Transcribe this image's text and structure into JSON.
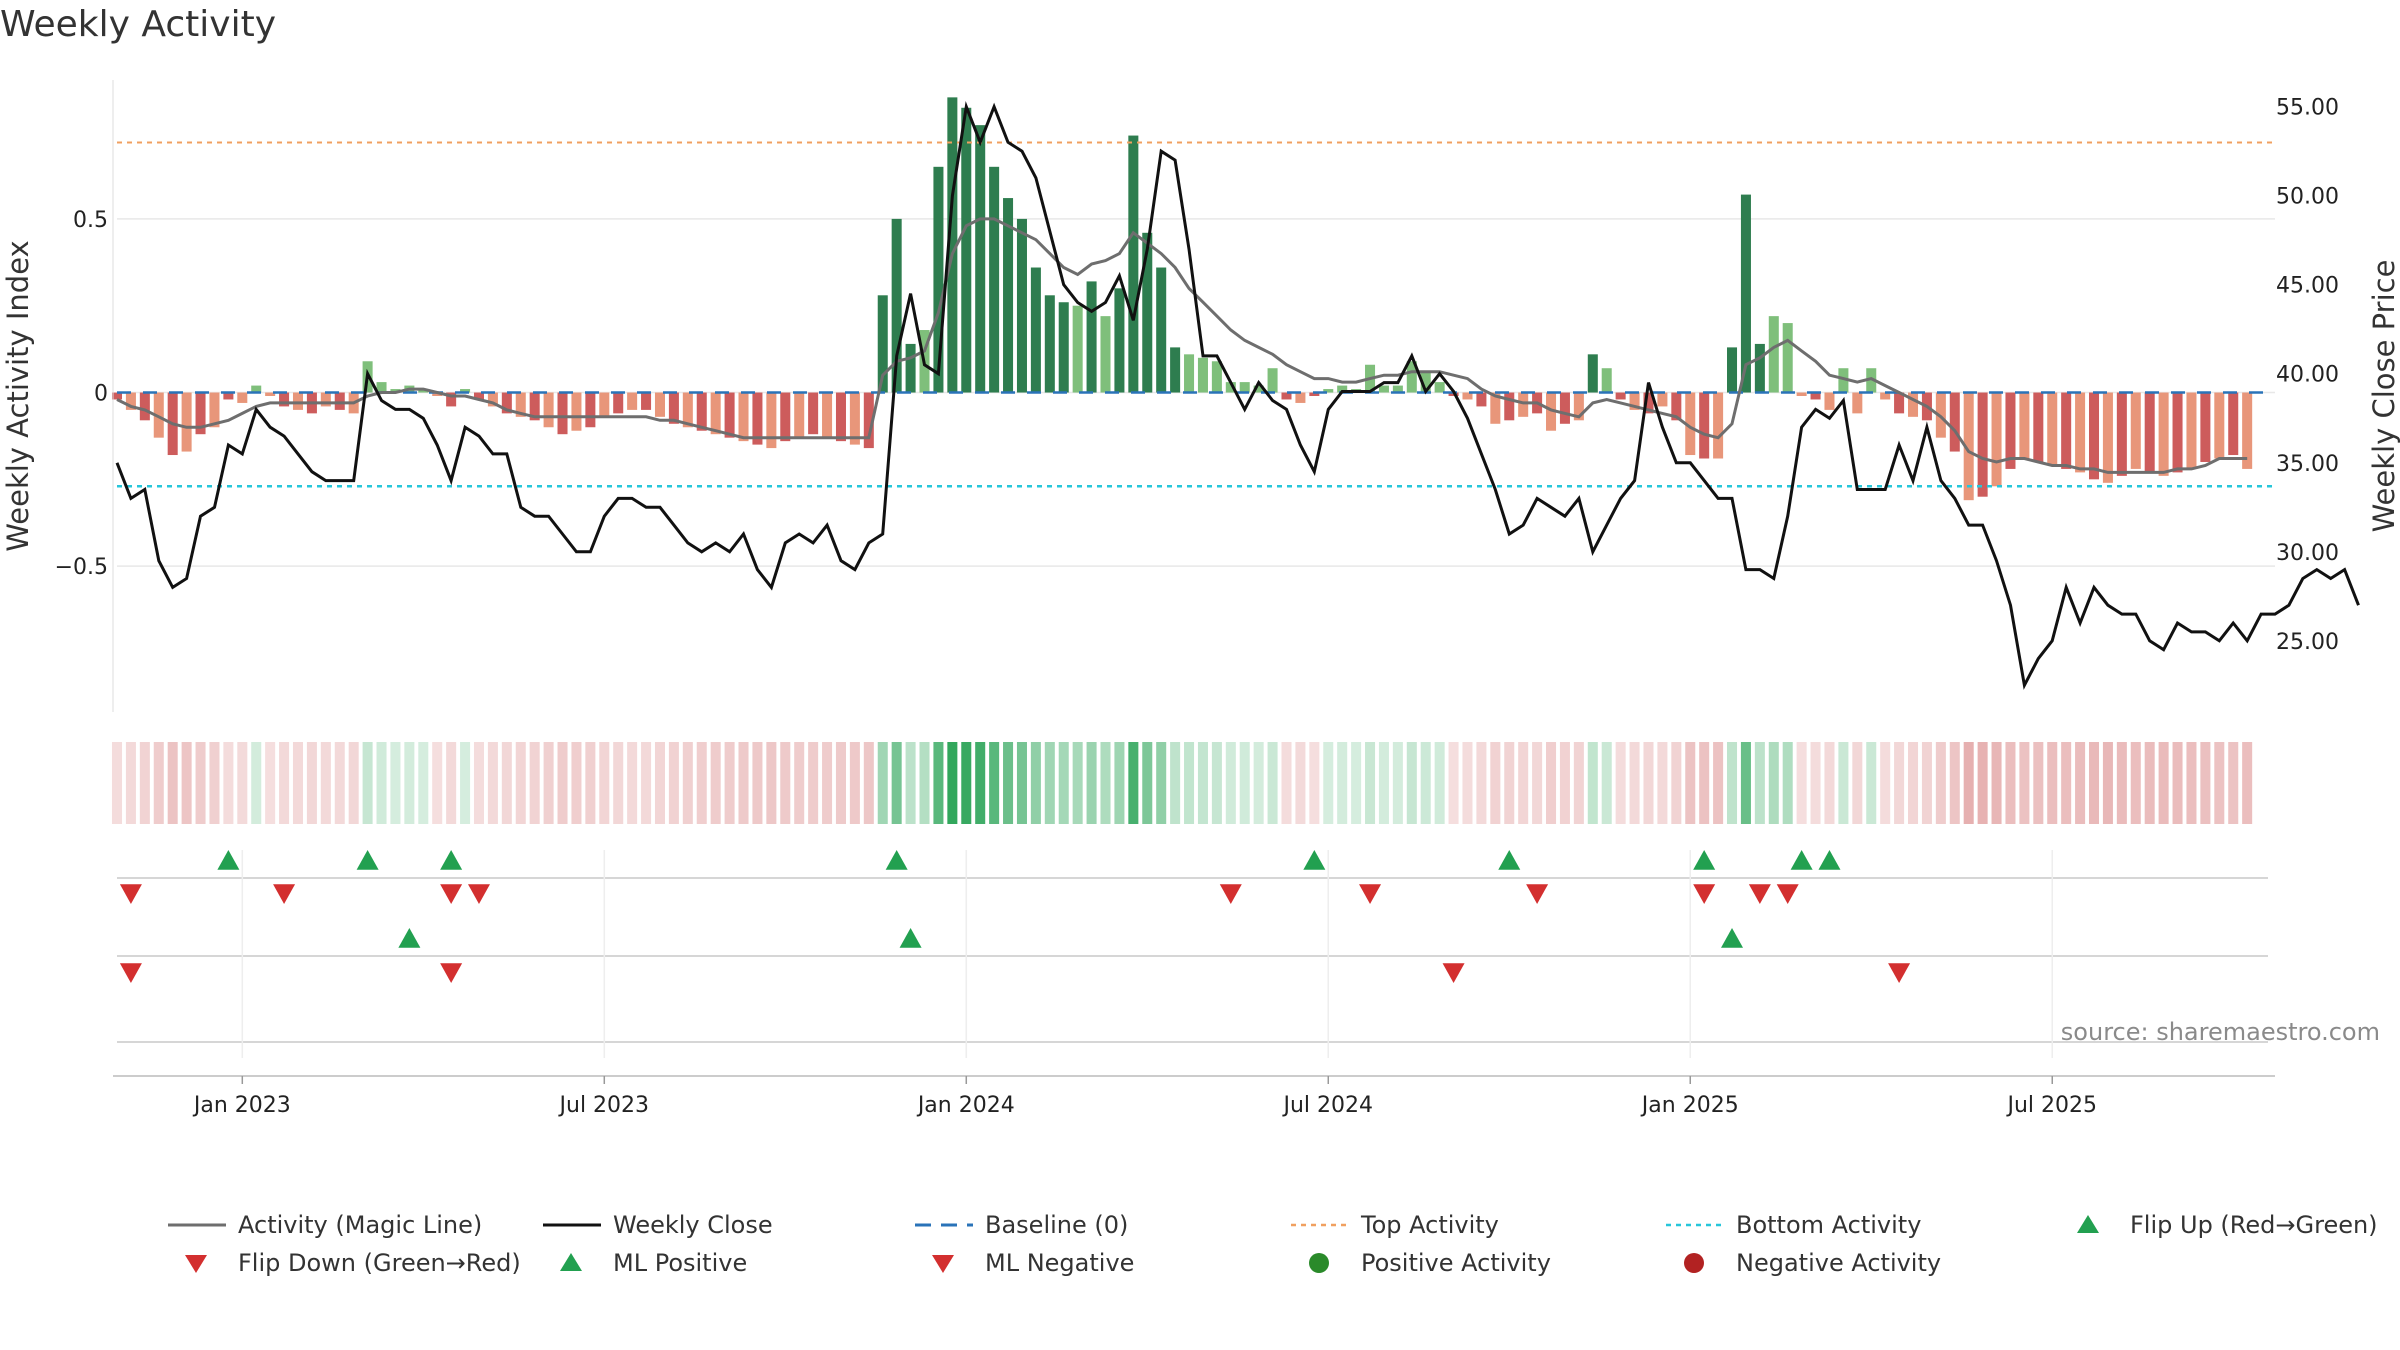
{
  "chart_data": {
    "type": "bar",
    "title": "Weekly Activity",
    "ylabel_left": "Weekly Activity Index",
    "ylabel_right": "Weekly Close Price",
    "source": "source: sharemaestro.com",
    "x_ticks": [
      "Jan 2023",
      "Jul 2023",
      "Jan 2024",
      "Jul 2024",
      "Jan 2025",
      "Jul 2025"
    ],
    "x_tick_weeks": [
      9,
      35,
      61,
      87,
      113,
      139
    ],
    "left_ticks": [
      {
        "v": 0.5,
        "label": "0.5"
      },
      {
        "v": 0,
        "label": "0"
      },
      {
        "v": -0.5,
        "label": "−0.5"
      }
    ],
    "right_ticks": [
      {
        "v": 55,
        "label": "55.00"
      },
      {
        "v": 50,
        "label": "50.00"
      },
      {
        "v": 45,
        "label": "45.00"
      },
      {
        "v": 40,
        "label": "40.00"
      },
      {
        "v": 35,
        "label": "35.00"
      },
      {
        "v": 30,
        "label": "30.00"
      },
      {
        "v": 25,
        "label": "25.00"
      }
    ],
    "ylim_left": [
      -0.92,
      0.9
    ],
    "ylim_right": [
      21,
      56.5
    ],
    "top_activity": 0.72,
    "bottom_activity": -0.27,
    "weeks": 156,
    "activity": [
      -0.02,
      -0.05,
      -0.08,
      -0.13,
      -0.18,
      -0.17,
      -0.12,
      -0.1,
      -0.02,
      -0.03,
      0.02,
      -0.01,
      -0.04,
      -0.05,
      -0.06,
      -0.04,
      -0.05,
      -0.06,
      0.09,
      0.03,
      0.01,
      0.02,
      0.01,
      -0.01,
      -0.04,
      0.01,
      -0.02,
      -0.04,
      -0.06,
      -0.07,
      -0.08,
      -0.1,
      -0.12,
      -0.11,
      -0.1,
      -0.07,
      -0.06,
      -0.05,
      -0.05,
      -0.07,
      -0.09,
      -0.1,
      -0.11,
      -0.12,
      -0.13,
      -0.14,
      -0.15,
      -0.16,
      -0.14,
      -0.13,
      -0.12,
      -0.13,
      -0.14,
      -0.15,
      -0.16,
      0.28,
      0.5,
      0.14,
      0.18,
      0.65,
      0.85,
      0.82,
      0.77,
      0.65,
      0.56,
      0.5,
      0.36,
      0.28,
      0.26,
      0.25,
      0.32,
      0.22,
      0.3,
      0.74,
      0.46,
      0.36,
      0.13,
      0.11,
      0.1,
      0.09,
      0.03,
      0.03,
      0.02,
      0.07,
      -0.02,
      -0.03,
      -0.01,
      0.01,
      0.02,
      0.01,
      0.08,
      0.02,
      0.02,
      0.09,
      0.06,
      0.03,
      -0.01,
      -0.02,
      -0.04,
      -0.09,
      -0.08,
      -0.07,
      -0.06,
      -0.11,
      -0.09,
      -0.08,
      0.11,
      0.07,
      -0.02,
      -0.05,
      -0.06,
      -0.04,
      -0.08,
      -0.18,
      -0.19,
      -0.19,
      0.13,
      0.57,
      0.14,
      0.22,
      0.2,
      -0.01,
      -0.02,
      -0.05,
      0.07,
      -0.06,
      0.07,
      -0.02,
      -0.06,
      -0.07,
      -0.08,
      -0.13,
      -0.17,
      -0.31,
      -0.3,
      -0.27,
      -0.22,
      -0.19,
      -0.2,
      -0.21,
      -0.22,
      -0.23,
      -0.25,
      -0.26,
      -0.24,
      -0.22,
      -0.23,
      -0.24,
      -0.23,
      -0.22,
      -0.2,
      -0.19,
      -0.18,
      -0.22
    ],
    "magic_line": [
      -0.02,
      -0.04,
      -0.05,
      -0.07,
      -0.09,
      -0.1,
      -0.1,
      -0.09,
      -0.08,
      -0.06,
      -0.04,
      -0.03,
      -0.03,
      -0.03,
      -0.03,
      -0.03,
      -0.03,
      -0.03,
      -0.01,
      0.0,
      0.0,
      0.01,
      0.01,
      0.0,
      -0.01,
      -0.01,
      -0.02,
      -0.03,
      -0.05,
      -0.06,
      -0.07,
      -0.07,
      -0.07,
      -0.07,
      -0.07,
      -0.07,
      -0.07,
      -0.07,
      -0.07,
      -0.08,
      -0.08,
      -0.09,
      -0.1,
      -0.11,
      -0.12,
      -0.13,
      -0.13,
      -0.13,
      -0.13,
      -0.13,
      -0.13,
      -0.13,
      -0.13,
      -0.13,
      -0.13,
      0.05,
      0.09,
      0.1,
      0.12,
      0.23,
      0.4,
      0.48,
      0.5,
      0.5,
      0.48,
      0.46,
      0.44,
      0.4,
      0.36,
      0.34,
      0.37,
      0.38,
      0.4,
      0.46,
      0.43,
      0.4,
      0.36,
      0.3,
      0.26,
      0.22,
      0.18,
      0.15,
      0.13,
      0.11,
      0.08,
      0.06,
      0.04,
      0.04,
      0.03,
      0.03,
      0.04,
      0.05,
      0.05,
      0.06,
      0.06,
      0.06,
      0.05,
      0.04,
      0.01,
      -0.01,
      -0.02,
      -0.03,
      -0.03,
      -0.05,
      -0.06,
      -0.07,
      -0.03,
      -0.02,
      -0.03,
      -0.04,
      -0.05,
      -0.06,
      -0.07,
      -0.1,
      -0.12,
      -0.13,
      -0.09,
      0.08,
      0.1,
      0.13,
      0.15,
      0.12,
      0.09,
      0.05,
      0.04,
      0.03,
      0.04,
      0.02,
      0.0,
      -0.02,
      -0.04,
      -0.07,
      -0.11,
      -0.17,
      -0.19,
      -0.2,
      -0.19,
      -0.19,
      -0.2,
      -0.21,
      -0.21,
      -0.22,
      -0.22,
      -0.23,
      -0.23,
      -0.23,
      -0.23,
      -0.23,
      -0.22,
      -0.22,
      -0.21,
      -0.19,
      -0.19,
      -0.19
    ],
    "weekly_close": [
      35,
      33,
      33.5,
      29.5,
      28,
      28.5,
      32,
      32.5,
      36,
      35.5,
      38,
      37,
      36.5,
      35.5,
      34.5,
      34,
      34,
      34,
      40,
      38.5,
      38,
      38,
      37.5,
      36,
      34,
      37,
      36.5,
      35.5,
      35.5,
      32.5,
      32,
      32,
      31,
      30,
      30,
      32,
      33,
      33,
      32.5,
      32.5,
      31.5,
      30.5,
      30,
      30.5,
      30,
      31,
      29,
      28,
      30.5,
      31,
      30.5,
      31.5,
      29.5,
      29,
      30.5,
      31,
      41,
      44.5,
      40.5,
      40,
      50,
      55,
      53,
      55,
      53,
      52.5,
      51,
      48,
      45,
      44,
      43.5,
      44,
      45.5,
      43,
      47,
      52.5,
      52,
      47,
      41,
      41,
      39.5,
      38,
      39.5,
      38.5,
      38,
      36,
      34.5,
      38,
      39,
      39,
      39,
      39.5,
      39.5,
      41,
      39,
      40,
      39,
      37.5,
      35.5,
      33.5,
      31,
      31.5,
      33,
      32.5,
      32,
      33,
      30,
      31.5,
      33,
      34,
      39.5,
      37,
      35,
      35,
      34,
      33,
      33,
      29,
      29,
      28.5,
      32,
      37,
      38,
      37.5,
      38.5,
      33.5,
      33.5,
      33.5,
      36,
      34,
      37,
      34,
      33,
      31.5,
      31.5,
      29.5,
      27,
      22.5,
      24,
      25,
      28,
      26,
      28,
      27,
      26.5,
      26.5,
      25,
      24.5,
      26,
      25.5,
      25.5,
      25,
      26,
      25,
      26.5,
      26.5,
      27,
      28.5,
      29,
      28.5,
      29,
      27
    ],
    "flip_up": [
      5,
      10,
      13,
      29,
      45,
      54,
      60,
      64,
      65
    ],
    "flip_down": [
      0,
      6,
      12,
      14,
      43,
      49,
      55,
      62,
      64,
      65
    ],
    "ml_positive": [
      11,
      29,
      59
    ],
    "ml_negative": [
      0,
      12,
      49,
      65
    ],
    "flip_up_x_weeks": [
      8,
      18,
      24,
      56,
      86,
      100,
      114,
      121,
      123
    ],
    "flip_down_x_weeks": [
      1,
      12,
      24,
      26,
      80,
      90,
      102,
      114,
      118,
      120
    ],
    "ml_positive_x_weeks": [
      21,
      57,
      116
    ],
    "ml_negative_x_weeks": [
      1,
      24,
      96,
      128
    ],
    "legend": [
      {
        "key": "magic",
        "label": "Activity (Magic Line)"
      },
      {
        "key": "close",
        "label": "Weekly Close"
      },
      {
        "key": "baseline",
        "label": "Baseline (0)"
      },
      {
        "key": "top",
        "label": "Top Activity"
      },
      {
        "key": "bottom",
        "label": "Bottom Activity"
      },
      {
        "key": "flipup",
        "label": "Flip Up (Red→Green)"
      },
      {
        "key": "flipdown",
        "label": "Flip Down (Green→Red)"
      },
      {
        "key": "mlpos",
        "label": "ML Positive"
      },
      {
        "key": "mlneg",
        "label": "ML Negative"
      },
      {
        "key": "posact",
        "label": "Positive Activity"
      },
      {
        "key": "negact",
        "label": "Negative Activity"
      }
    ],
    "colors": {
      "green_dark": "#2e7d4f",
      "green_light": "#7fbf7b",
      "red_dark": "#cd5c5c",
      "red_light": "#e8967a",
      "magic": "#6e6e6e",
      "close": "#111111",
      "baseline": "#2a73b8",
      "top": "#f0a060",
      "bottom": "#26c6da",
      "marker_green": "#22a050",
      "marker_red": "#d32f2f",
      "dot_green": "#2a8a2a",
      "dot_red": "#b22222"
    }
  }
}
